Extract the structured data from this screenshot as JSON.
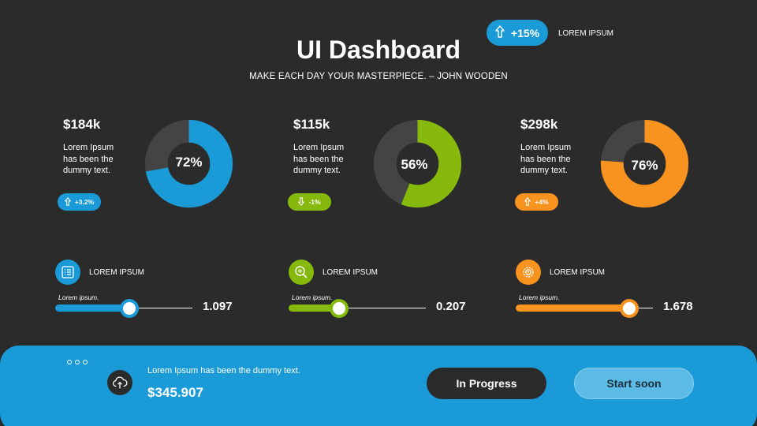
{
  "colors": {
    "background": "#2b2b2b",
    "blue": "#1a9bd7",
    "green": "#86b90b",
    "orange": "#f7931e",
    "track": "#444444"
  },
  "top_badge": {
    "value": "+15%",
    "label": "LOREM IPSUM",
    "icon": "arrow-up-icon"
  },
  "header": {
    "title": "UI Dashboard",
    "subtitle": "MAKE EACH DAY YOUR MASTERPIECE. – JOHN WOODEN"
  },
  "cards": [
    {
      "amount": "$184k",
      "description": "Lorem Ipsum has been the dummy text.",
      "change": "+3.2%",
      "change_icon": "arrow-up-icon",
      "percent_label": "72%",
      "percent": 72,
      "color": "#1a9bd7"
    },
    {
      "amount": "$115k",
      "description": "Lorem Ipsum has been the dummy text.",
      "change": "-1%",
      "change_icon": "arrow-down-icon",
      "percent_label": "56%",
      "percent": 56,
      "color": "#86b90b"
    },
    {
      "amount": "$298k",
      "description": "Lorem Ipsum has been the dummy text.",
      "change": "+4%",
      "change_icon": "arrow-up-icon",
      "percent_label": "76%",
      "percent": 76,
      "color": "#f7931e"
    }
  ],
  "metrics": [
    {
      "label": "LOREM IPSUM",
      "icon": "list-icon",
      "caption": "Lorem ipsum.",
      "value": "1.097",
      "slider_level": 0.54,
      "color": "#1a9bd7"
    },
    {
      "label": "LOREM IPSUM",
      "icon": "magnifier-plus-icon",
      "caption": "Lorem ipsum.",
      "value": "0.207",
      "slider_level": 0.37,
      "color": "#86b90b"
    },
    {
      "label": "LOREM IPSUM",
      "icon": "gear-icon",
      "caption": "Lorem ipsum.",
      "value": "1.678",
      "slider_level": 0.83,
      "color": "#f7931e"
    }
  ],
  "footer": {
    "icon": "cloud-upload-icon",
    "text": "Lorem Ipsum has been the dummy text.",
    "amount": "$345.907",
    "btn_progress": "In Progress",
    "btn_soon": "Start soon"
  }
}
